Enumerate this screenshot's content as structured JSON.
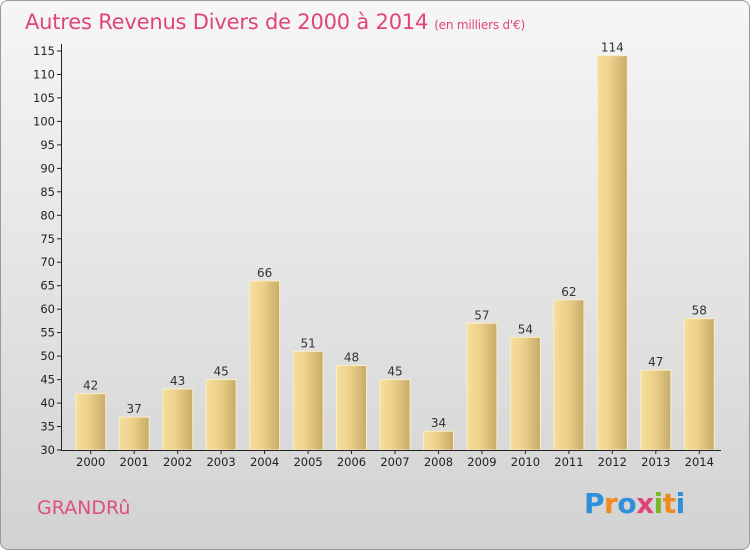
{
  "header": {
    "title": "Autres Revenus Divers de 2000 à 2014",
    "subtitle": "(en milliers d'€)"
  },
  "commune": "GRANDRû",
  "logo": [
    "P",
    "r",
    "o",
    "x",
    "i",
    "t",
    "i"
  ],
  "chart_data": {
    "type": "bar",
    "title": "Autres Revenus Divers de 2000 à 2014",
    "subtitle": "(en milliers d'€)",
    "xlabel": "",
    "ylabel": "",
    "categories": [
      "2000",
      "2001",
      "2002",
      "2003",
      "2004",
      "2005",
      "2006",
      "2007",
      "2008",
      "2009",
      "2010",
      "2011",
      "2012",
      "2013",
      "2014"
    ],
    "values": [
      42,
      37,
      43,
      45,
      66,
      51,
      48,
      45,
      34,
      57,
      54,
      62,
      114,
      47,
      58
    ],
    "ylim": [
      30,
      115
    ],
    "yticks": [
      30,
      35,
      40,
      45,
      50,
      55,
      60,
      65,
      70,
      75,
      80,
      85,
      90,
      95,
      100,
      105,
      110,
      115
    ],
    "grid": false,
    "legend": "none",
    "colors": {
      "bar_light": "#f3da96",
      "bar_dark": "#c9ad6c",
      "bar_edge": "#fbeec7",
      "axis": "#222222",
      "title": "#e0447c"
    }
  }
}
